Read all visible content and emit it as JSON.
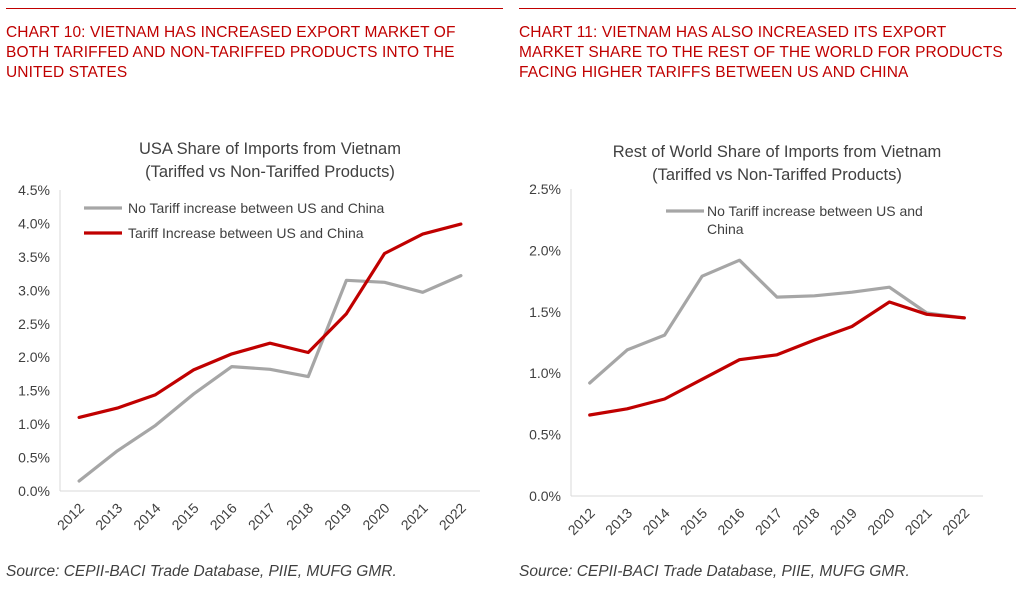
{
  "panels": [
    {
      "heading": "CHART 10: VIETNAM HAS INCREASED EXPORT MARKET OF BOTH TARIFFED AND NON-TARIFFED PRODUCTS INTO THE UNITED STATES",
      "source": "Source: CEPII-BACI Trade Database, PIIE, MUFG GMR."
    },
    {
      "heading": "CHART 11: VIETNAM HAS ALSO INCREASED ITS EXPORT MARKET SHARE TO THE REST OF THE WORLD FOR PRODUCTS FACING HIGHER TARIFFS BETWEEN US AND CHINA",
      "source": "Source: CEPII-BACI Trade Database, PIIE, MUFG GMR."
    }
  ],
  "colors": {
    "accent": "#c00000",
    "no_tariff": "#a6a6a6",
    "tariff": "#c00000",
    "axis": "#d9d9d9",
    "text": "#404040"
  },
  "chart_data": [
    {
      "type": "line",
      "title": "USA Share of Imports from Vietnam",
      "subtitle": "(Tariffed vs Non-Tariffed Products)",
      "xlabel": "",
      "ylabel": "",
      "categories": [
        "2012",
        "2013",
        "2014",
        "2015",
        "2016",
        "2017",
        "2018",
        "2019",
        "2020",
        "2021",
        "2022"
      ],
      "ylim": [
        0,
        4.5
      ],
      "yticks": [
        "0.0%",
        "0.5%",
        "1.0%",
        "1.5%",
        "2.0%",
        "2.5%",
        "3.0%",
        "3.5%",
        "4.0%",
        "4.5%"
      ],
      "grid": false,
      "legend_position": "top-left",
      "series": [
        {
          "name": "No Tariff increase between US and China",
          "color": "#a6a6a6",
          "values": [
            0.15,
            0.6,
            0.98,
            1.45,
            1.86,
            1.82,
            1.71,
            3.15,
            3.12,
            2.97,
            3.22
          ]
        },
        {
          "name": "Tariff Increase between US and China",
          "color": "#c00000",
          "values": [
            1.1,
            1.24,
            1.44,
            1.81,
            2.05,
            2.21,
            2.07,
            2.65,
            3.55,
            3.84,
            3.99
          ]
        }
      ]
    },
    {
      "type": "line",
      "title": "Rest of World Share of Imports from Vietnam",
      "subtitle": "(Tariffed vs Non-Tariffed Products)",
      "xlabel": "",
      "ylabel": "",
      "categories": [
        "2012",
        "2013",
        "2014",
        "2015",
        "2016",
        "2017",
        "2018",
        "2019",
        "2020",
        "2021",
        "2022"
      ],
      "ylim": [
        0,
        2.5
      ],
      "yticks": [
        "0.0%",
        "0.5%",
        "1.0%",
        "1.5%",
        "2.0%",
        "2.5%"
      ],
      "grid": false,
      "legend_position": "top-center",
      "series": [
        {
          "name": "No Tariff increase between US and China",
          "legend_lines": [
            "No Tariff increase between US and",
            "China"
          ],
          "color": "#a6a6a6",
          "values": [
            0.92,
            1.19,
            1.31,
            1.79,
            1.92,
            1.62,
            1.63,
            1.66,
            1.7,
            1.49,
            1.45
          ]
        },
        {
          "name": "",
          "color": "#c00000",
          "values": [
            0.66,
            0.71,
            0.79,
            0.95,
            1.11,
            1.15,
            1.27,
            1.38,
            1.58,
            1.48,
            1.45
          ]
        }
      ]
    }
  ]
}
